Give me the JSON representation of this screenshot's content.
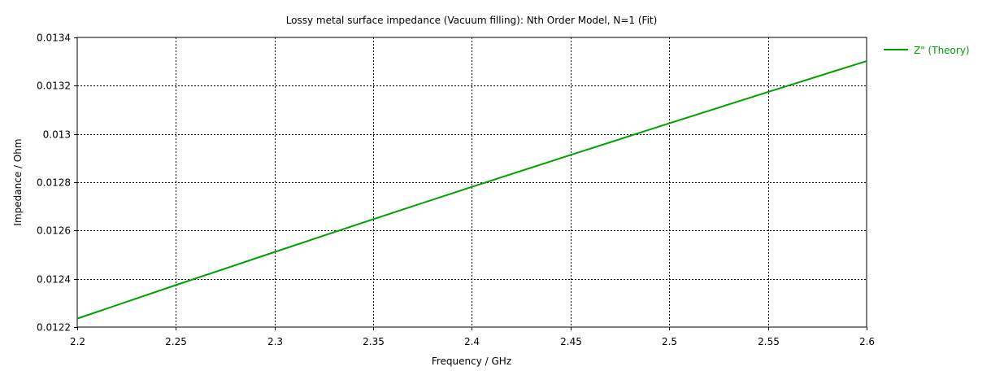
{
  "chart_data": {
    "type": "line",
    "title": "Lossy metal surface impedance (Vacuum filling): Nth Order Model, N=1 (Fit)",
    "xlabel": "Frequency / GHz",
    "ylabel": "Impedance / Ohm",
    "xlim": [
      2.2,
      2.6
    ],
    "ylim": [
      0.0122,
      0.0134
    ],
    "x_ticks": [
      2.2,
      2.25,
      2.3,
      2.35,
      2.4,
      2.45,
      2.5,
      2.55,
      2.6
    ],
    "x_tick_labels": [
      "2.2",
      "2.25",
      "2.3",
      "2.35",
      "2.4",
      "2.45",
      "2.5",
      "2.55",
      "2.6"
    ],
    "y_ticks": [
      0.0122,
      0.0124,
      0.0126,
      0.0128,
      0.013,
      0.0132,
      0.0134
    ],
    "y_tick_labels": [
      "0.0122",
      "0.0124",
      "0.0126",
      "0.0128",
      "0.013",
      "0.0132",
      "0.0134"
    ],
    "grid": true,
    "grid_style": "dotted",
    "legend_position": "top-right outside plot",
    "series": [
      {
        "name": "Z\" (Theory)",
        "color": "#00a000",
        "x": [
          2.2,
          2.25,
          2.3,
          2.35,
          2.4,
          2.45,
          2.5,
          2.55,
          2.6
        ],
        "y": [
          0.012235,
          0.012374,
          0.012511,
          0.012647,
          0.012781,
          0.012913,
          0.013044,
          0.013174,
          0.013302
        ]
      }
    ]
  }
}
